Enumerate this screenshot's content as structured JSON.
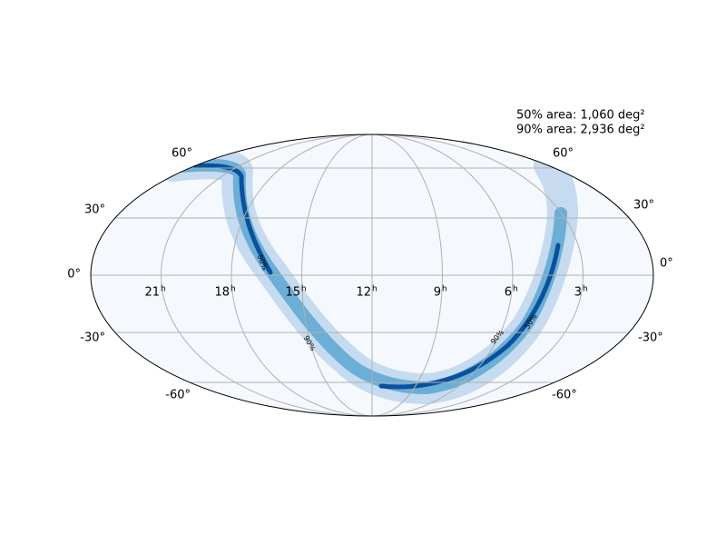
{
  "annotations": [
    "50% area: 1,060 deg²",
    "90% area: 2,936 deg²"
  ],
  "lat_labels_left": [
    "60°",
    "30°",
    "0°",
    "-30°",
    "-60°"
  ],
  "lat_labels_right": [
    "60°",
    "30°",
    "0°",
    "-30°",
    "-60°"
  ],
  "ra_labels": [
    "21",
    "18",
    "15",
    "12",
    "9",
    "6",
    "3"
  ],
  "ra_unit": "h",
  "contour_labels": [
    "50%",
    "90%",
    "90%",
    "50%"
  ]
}
